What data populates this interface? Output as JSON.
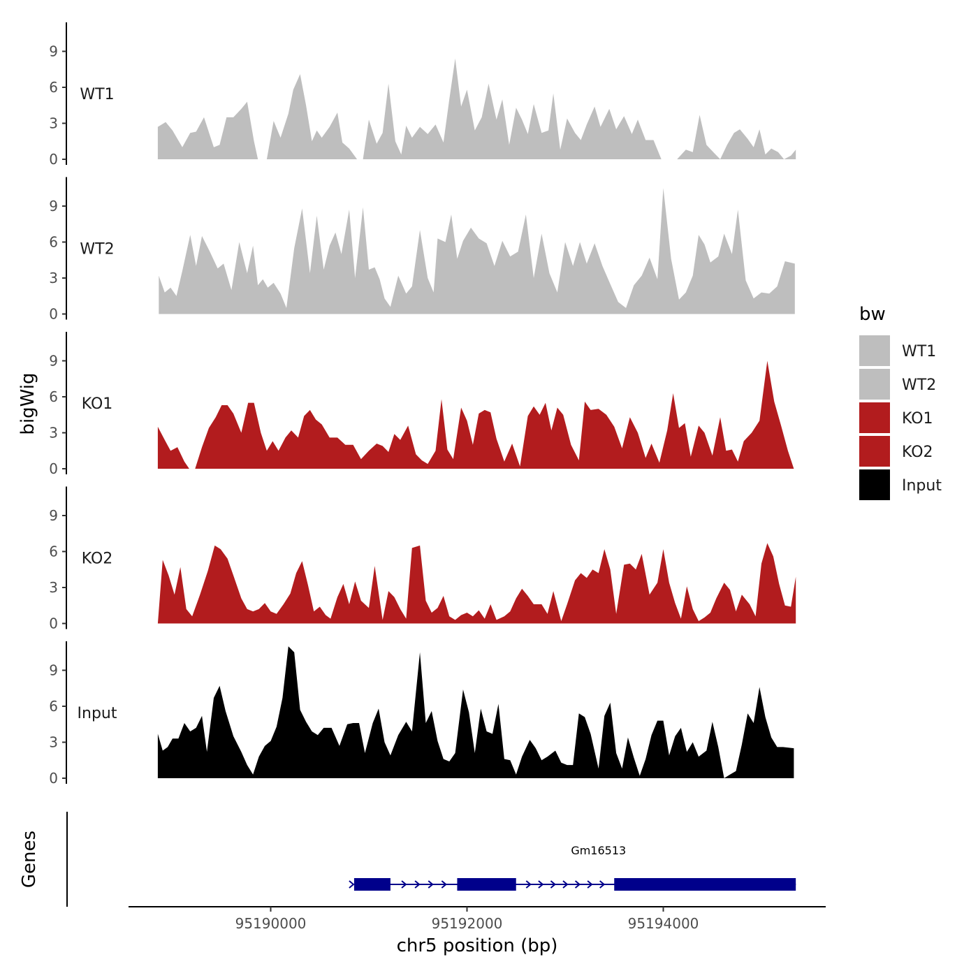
{
  "chart_data": {
    "type": "area",
    "y_axis_title": "bigWig",
    "x_axis_title": "chr5 position (bp)",
    "genes_title": "Genes",
    "xlim": [
      95188600,
      95195700
    ],
    "ylim": [
      0,
      11.5
    ],
    "y_ticks": [
      0,
      3,
      6,
      9
    ],
    "x_ticks": [
      95190000,
      95192000,
      95194000
    ],
    "x_tick_labels": [
      "95190000",
      "95192000",
      "95194000"
    ],
    "legend": {
      "title": "bw",
      "entries": [
        {
          "label": "WT1",
          "color": "#bebebe"
        },
        {
          "label": "WT2",
          "color": "#bebebe"
        },
        {
          "label": "KO1",
          "color": "#b21c1e"
        },
        {
          "label": "KO2",
          "color": "#b21c1e"
        },
        {
          "label": "Input",
          "color": "#000000"
        }
      ]
    },
    "series": [
      {
        "name": "WT1",
        "color": "#bebebe",
        "x": [
          95188850,
          95188930,
          95189000,
          95189100,
          95189180,
          95189240,
          95189320,
          95189420,
          95189480,
          95189550,
          95189620,
          95189700,
          95189760,
          95189830,
          95189870,
          95189920,
          95189960,
          95190030,
          95190100,
          95190180,
          95190230,
          95190300,
          95190360,
          95190420,
          95190470,
          95190520,
          95190600,
          95190680,
          95190730,
          95190800,
          95190880,
          95190940,
          95191000,
          95191080,
          95191140,
          95191200,
          95191270,
          95191330,
          95191380,
          95191440,
          95191520,
          95191600,
          95191680,
          95191760,
          95191820,
          95191880,
          95191940,
          95192000,
          95192080,
          95192150,
          95192220,
          95192300,
          95192360,
          95192430,
          95192500,
          95192560,
          95192620,
          95192680,
          95192760,
          95192830,
          95192880,
          95192950,
          95193020,
          95193100,
          95193160,
          95193220,
          95193300,
          95193360,
          95193450,
          95193520,
          95193600,
          95193680,
          95193740,
          95193820,
          95193900,
          95193980,
          95194060,
          95194140,
          95194230,
          95194300,
          95194370,
          95194440,
          95194520,
          95194580,
          95194650,
          95194720,
          95194780,
          95194860,
          95194920,
          95194980,
          95195040,
          95195100,
          95195170,
          95195230,
          95195300,
          95195350
        ],
        "values": [
          2.7,
          3.1,
          2.4,
          1.0,
          2.2,
          2.3,
          3.5,
          1.0,
          1.2,
          3.5,
          3.5,
          4.2,
          4.8,
          1.5,
          0,
          0,
          0,
          3.2,
          1.8,
          3.8,
          5.8,
          7.1,
          4.5,
          1.5,
          2.4,
          1.8,
          2.7,
          3.9,
          1.4,
          0.9,
          0,
          0,
          3.3,
          1.3,
          2.2,
          6.3,
          1.5,
          0.4,
          2.8,
          1.8,
          2.7,
          2.1,
          2.9,
          1.4,
          5.0,
          8.4,
          4.4,
          5.8,
          2.4,
          3.5,
          6.3,
          3.3,
          5.0,
          1.2,
          4.3,
          3.3,
          2.1,
          4.6,
          2.2,
          2.4,
          5.5,
          0.8,
          3.4,
          2.2,
          1.6,
          2.9,
          4.4,
          2.7,
          4.2,
          2.5,
          3.6,
          2.1,
          3.3,
          1.6,
          1.6,
          0,
          0,
          0,
          0.8,
          0.6,
          3.7,
          1.2,
          0.5,
          0,
          1.2,
          2.2,
          2.5,
          1.7,
          1.0,
          2.5,
          0.4,
          0.9,
          0.6,
          0,
          0.3,
          0.8
        ]
      },
      {
        "name": "WT2",
        "color": "#bebebe",
        "x": [
          95188860,
          95188920,
          95188980,
          95189040,
          95189100,
          95189180,
          95189240,
          95189300,
          95189380,
          95189460,
          95189520,
          95189600,
          95189680,
          95189760,
          95189820,
          95189870,
          95189920,
          95189970,
          95190030,
          95190100,
          95190160,
          95190240,
          95190320,
          95190400,
          95190470,
          95190540,
          95190600,
          95190660,
          95190720,
          95190800,
          95190860,
          95190940,
          95191000,
          95191060,
          95191110,
          95191160,
          95191220,
          95191300,
          95191380,
          95191440,
          95191520,
          95191600,
          95191660,
          95191700,
          95191780,
          95191840,
          95191900,
          95191960,
          95192040,
          95192120,
          95192200,
          95192280,
          95192360,
          95192440,
          95192520,
          95192600,
          95192680,
          95192760,
          95192840,
          95192920,
          95193000,
          95193080,
          95193150,
          95193220,
          95193300,
          95193380,
          95193460,
          95193540,
          95193620,
          95193700,
          95193780,
          95193860,
          95193940,
          95194000,
          95194080,
          95194160,
          95194230,
          95194300,
          95194360,
          95194420,
          95194480,
          95194560,
          95194620,
          95194700,
          95194760,
          95194840,
          95194920,
          95195000,
          95195080,
          95195160,
          95195240,
          95195340
        ],
        "values": [
          3.2,
          1.8,
          2.2,
          1.5,
          3.6,
          6.6,
          4.0,
          6.5,
          5.2,
          3.8,
          4.2,
          2.0,
          6.0,
          3.4,
          5.7,
          2.4,
          2.9,
          2.2,
          2.6,
          1.7,
          0.5,
          5.5,
          8.8,
          3.4,
          8.2,
          3.7,
          5.7,
          6.8,
          5.0,
          8.7,
          3.0,
          8.9,
          3.7,
          3.9,
          2.9,
          1.3,
          0.6,
          3.2,
          1.7,
          2.3,
          7.0,
          3.0,
          1.8,
          6.3,
          6.0,
          8.3,
          4.6,
          6.1,
          7.2,
          6.3,
          5.9,
          4.0,
          6.1,
          4.8,
          5.2,
          8.3,
          3.0,
          6.7,
          3.4,
          1.8,
          6.0,
          4.0,
          6.0,
          4.2,
          5.9,
          4.0,
          2.5,
          1.0,
          0.5,
          2.4,
          3.2,
          4.7,
          2.9,
          10.5,
          4.6,
          1.2,
          1.8,
          3.2,
          6.6,
          5.8,
          4.3,
          4.8,
          6.7,
          5.0,
          8.7,
          2.8,
          1.3,
          1.8,
          1.7,
          2.3,
          4.4,
          4.2
        ]
      },
      {
        "name": "KO1",
        "color": "#b21c1e",
        "x": [
          95188850,
          95188920,
          95188980,
          95189050,
          95189120,
          95189170,
          95189230,
          95189300,
          95189370,
          95189440,
          95189500,
          95189560,
          95189620,
          95189700,
          95189770,
          95189830,
          95189900,
          95189960,
          95190020,
          95190080,
          95190150,
          95190210,
          95190280,
          95190340,
          95190400,
          95190460,
          95190520,
          95190600,
          95190680,
          95190760,
          95190840,
          95190920,
          95191000,
          95191080,
          95191140,
          95191200,
          95191260,
          95191320,
          95191400,
          95191480,
          95191540,
          95191600,
          95191680,
          95191740,
          95191800,
          95191860,
          95191940,
          95192000,
          95192060,
          95192120,
          95192180,
          95192240,
          95192300,
          95192380,
          95192460,
          95192540,
          95192620,
          95192680,
          95192740,
          95192800,
          95192860,
          95192920,
          95192980,
          95193060,
          95193140,
          95193200,
          95193260,
          95193340,
          95193420,
          95193500,
          95193580,
          95193660,
          95193740,
          95193820,
          95193880,
          95193960,
          95194040,
          95194100,
          95194160,
          95194220,
          95194280,
          95194360,
          95194420,
          95194500,
          95194580,
          95194640,
          95194700,
          95194760,
          95194820,
          95194900,
          95194980,
          95195060,
          95195130,
          95195200,
          95195270,
          95195330
        ],
        "values": [
          3.5,
          2.4,
          1.5,
          1.8,
          0.6,
          0,
          0,
          1.8,
          3.4,
          4.3,
          5.3,
          5.3,
          4.6,
          3.0,
          5.5,
          5.5,
          3.0,
          1.5,
          2.3,
          1.5,
          2.6,
          3.2,
          2.6,
          4.4,
          4.9,
          4.1,
          3.7,
          2.6,
          2.6,
          2.0,
          2.0,
          0.8,
          1.5,
          2.1,
          1.9,
          1.4,
          2.9,
          2.4,
          3.6,
          1.2,
          0.7,
          0.4,
          1.5,
          5.8,
          1.6,
          0.8,
          5.1,
          4.0,
          2.0,
          4.6,
          4.9,
          4.7,
          2.5,
          0.6,
          2.1,
          0.2,
          4.4,
          5.2,
          4.5,
          5.5,
          3.2,
          5.1,
          4.5,
          2.0,
          0.7,
          5.6,
          4.9,
          5.0,
          4.5,
          3.5,
          1.7,
          4.3,
          3.0,
          0.9,
          2.1,
          0.5,
          3.2,
          6.3,
          3.4,
          3.8,
          1.0,
          3.6,
          3.0,
          1.1,
          4.3,
          1.5,
          1.6,
          0.6,
          2.3,
          3.0,
          4.0,
          9.0,
          5.6,
          3.6,
          1.5,
          0
        ]
      },
      {
        "name": "KO2",
        "color": "#b21c1e",
        "x": [
          95188850,
          95188900,
          95188960,
          95189020,
          95189080,
          95189140,
          95189200,
          95189280,
          95189360,
          95189430,
          95189490,
          95189560,
          95189620,
          95189700,
          95189760,
          95189820,
          95189880,
          95189940,
          95190000,
          95190060,
          95190130,
          95190200,
          95190260,
          95190320,
          95190380,
          95190440,
          95190500,
          95190560,
          95190610,
          95190680,
          95190740,
          95190800,
          95190860,
          95190920,
          95191000,
          95191060,
          95191140,
          95191200,
          95191260,
          95191320,
          95191380,
          95191440,
          95191520,
          95191580,
          95191640,
          95191700,
          95191760,
          95191820,
          95191880,
          95191940,
          95192000,
          95192060,
          95192120,
          95192180,
          95192240,
          95192300,
          95192380,
          95192440,
          95192500,
          95192560,
          95192620,
          95192680,
          95192760,
          95192820,
          95192880,
          95192960,
          95193020,
          95193100,
          95193160,
          95193220,
          95193280,
          95193340,
          95193400,
          95193460,
          95193520,
          95193600,
          95193660,
          95193720,
          95193780,
          95193860,
          95193940,
          95194000,
          95194060,
          95194120,
          95194180,
          95194240,
          95194300,
          95194360,
          95194420,
          95194480,
          95194540,
          95194620,
          95194680,
          95194740,
          95194800,
          95194880,
          95194940,
          95195000,
          95195060,
          95195120,
          95195180,
          95195240,
          95195300,
          95195350
        ],
        "values": [
          0,
          5.3,
          4.0,
          2.4,
          4.7,
          1.2,
          0.6,
          2.4,
          4.4,
          6.5,
          6.2,
          5.4,
          4.0,
          2.1,
          1.2,
          1.0,
          1.2,
          1.7,
          1.0,
          0.8,
          1.6,
          2.5,
          4.2,
          5.2,
          3.2,
          1.0,
          1.4,
          0.7,
          0.4,
          2.2,
          3.3,
          1.6,
          3.5,
          1.9,
          1.3,
          4.8,
          0.3,
          2.7,
          2.2,
          1.2,
          0.4,
          6.3,
          6.5,
          1.9,
          0.9,
          1.3,
          2.3,
          0.6,
          0.3,
          0.7,
          0.9,
          0.6,
          1.1,
          0.4,
          1.6,
          0.3,
          0.6,
          1.0,
          2.1,
          2.9,
          2.3,
          1.6,
          1.6,
          0.8,
          2.7,
          0.2,
          1.6,
          3.6,
          4.2,
          3.8,
          4.5,
          4.2,
          6.2,
          4.5,
          0.8,
          4.9,
          5.0,
          4.5,
          5.8,
          2.4,
          3.4,
          6.2,
          3.4,
          1.7,
          0.4,
          3.1,
          1.2,
          0.2,
          0.5,
          0.9,
          2.1,
          3.4,
          2.8,
          1.0,
          2.4,
          1.6,
          0.6,
          5.0,
          6.7,
          5.6,
          3.3,
          1.5,
          1.4,
          3.9
        ]
      },
      {
        "name": "Input",
        "color": "#000000",
        "x": [
          95188850,
          95188900,
          95188950,
          95189000,
          95189060,
          95189120,
          95189180,
          95189240,
          95189300,
          95189350,
          95189420,
          95189480,
          95189540,
          95189620,
          95189700,
          95189760,
          95189820,
          95189880,
          95189940,
          95190000,
          95190060,
          95190120,
          95190180,
          95190240,
          95190300,
          95190360,
          95190420,
          95190480,
          95190540,
          95190620,
          95190700,
          95190780,
          95190840,
          95190900,
          95190960,
          95191040,
          95191100,
          95191160,
          95191220,
          95191300,
          95191380,
          95191440,
          95191520,
          95191580,
          95191640,
          95191700,
          95191760,
          95191820,
          95191880,
          95191960,
          95192020,
          95192080,
          95192140,
          95192200,
          95192260,
          95192320,
          95192380,
          95192440,
          95192500,
          95192560,
          95192640,
          95192700,
          95192760,
          95192820,
          95192900,
          95192960,
          95193020,
          95193080,
          95193140,
          95193200,
          95193260,
          95193340,
          95193400,
          95193460,
          95193520,
          95193580,
          95193640,
          95193700,
          95193760,
          95193820,
          95193880,
          95193940,
          95194000,
          95194060,
          95194120,
          95194180,
          95194240,
          95194300,
          95194360,
          95194440,
          95194500,
          95194560,
          95194620,
          95194680,
          95194740,
          95194800,
          95194860,
          95194920,
          95194980,
          95195040,
          95195100,
          95195160,
          95195220,
          95195330
        ],
        "values": [
          3.7,
          2.3,
          2.6,
          3.3,
          3.3,
          4.6,
          3.9,
          4.2,
          5.2,
          2.2,
          6.7,
          7.7,
          5.6,
          3.5,
          2.2,
          1.1,
          0.3,
          1.8,
          2.7,
          3.1,
          4.3,
          6.7,
          11.0,
          10.5,
          5.7,
          4.7,
          3.9,
          3.6,
          4.2,
          4.2,
          2.7,
          4.5,
          4.6,
          4.6,
          2.1,
          4.6,
          5.8,
          3.0,
          1.9,
          3.6,
          4.7,
          3.9,
          10.5,
          4.6,
          5.6,
          3.1,
          1.6,
          1.4,
          2.1,
          7.4,
          5.5,
          2.1,
          5.8,
          3.9,
          3.7,
          6.2,
          1.6,
          1.5,
          0.3,
          1.8,
          3.2,
          2.5,
          1.5,
          1.8,
          2.3,
          1.3,
          1.1,
          1.1,
          5.4,
          5.1,
          3.7,
          0.8,
          5.2,
          6.3,
          2.1,
          0.8,
          3.4,
          1.7,
          0.2,
          1.6,
          3.6,
          4.8,
          4.8,
          1.9,
          3.5,
          4.2,
          2.2,
          3.0,
          1.8,
          2.3,
          4.7,
          2.6,
          0,
          0.3,
          0.6,
          2.8,
          5.4,
          4.6,
          7.6,
          5.1,
          3.4,
          2.6,
          2.6,
          2.5
        ]
      }
    ],
    "gene": {
      "name": "Gm16513",
      "color": "#00008b",
      "start": 95190850,
      "end": 95195350,
      "strand": "+",
      "exons": [
        [
          95190850,
          95191220
        ],
        [
          95191900,
          95192500
        ],
        [
          95193500,
          95195350
        ]
      ]
    }
  }
}
